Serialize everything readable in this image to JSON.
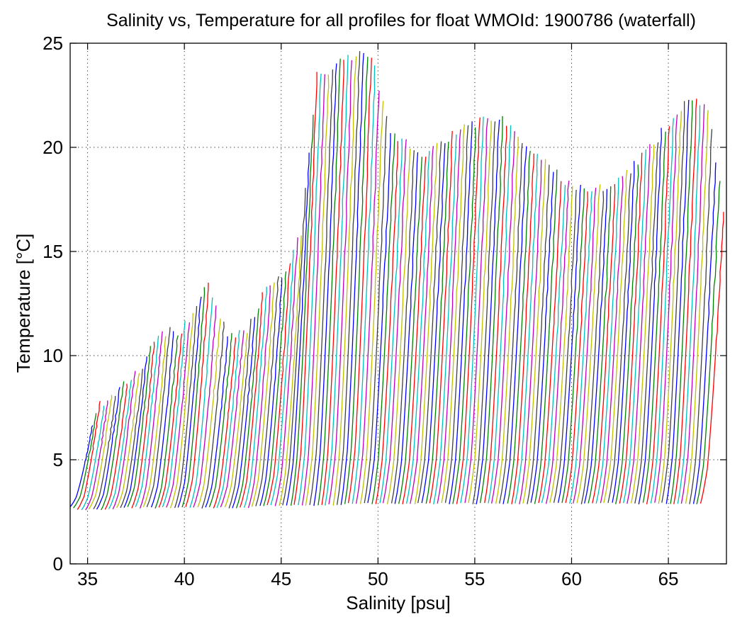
{
  "chart_data": {
    "type": "line",
    "title": "Salinity vs, Temperature for all profiles for float WMOId: 1900786 (waterfall)",
    "xlabel": "Salinity [psu]",
    "ylabel": "Temperature [°C]",
    "xlim": [
      34.1,
      68
    ],
    "ylim": [
      0,
      25
    ],
    "xticks": [
      35,
      40,
      45,
      50,
      55,
      60,
      65
    ],
    "yticks": [
      0,
      5,
      10,
      15,
      20,
      25
    ],
    "grid": true,
    "grid_style": "dotted",
    "legend": "none",
    "color_cycle": [
      "#0000ff",
      "#008000",
      "#ff0000",
      "#00bfbf",
      "#bf00bf",
      "#bfbf00",
      "#404040"
    ],
    "profile_spacing_psu": 0.2,
    "series_count": 164,
    "series": [
      {
        "name": "",
        "x_start": 34.2,
        "t_top": 6.9,
        "t_bottom": 2.7
      },
      {
        "name": "",
        "x_start": 34.6,
        "t_top": 7.6,
        "t_bottom": 2.6
      },
      {
        "name": "",
        "x_start": 35.2,
        "t_top": 7.9,
        "t_bottom": 2.6
      },
      {
        "name": "",
        "x_start": 36.0,
        "t_top": 8.8,
        "t_bottom": 2.6
      },
      {
        "name": "",
        "x_start": 36.6,
        "t_top": 9.2,
        "t_bottom": 2.7
      },
      {
        "name": "",
        "x_start": 37.6,
        "t_top": 11.1,
        "t_bottom": 2.7
      },
      {
        "name": "",
        "x_start": 38.8,
        "t_top": 11.2,
        "t_bottom": 2.7
      },
      {
        "name": "",
        "x_start": 40.2,
        "t_top": 13.4,
        "t_bottom": 2.7
      },
      {
        "name": "",
        "x_start": 41.2,
        "t_top": 11.0,
        "t_bottom": 2.7
      },
      {
        "name": "",
        "x_start": 42.2,
        "t_top": 11.3,
        "t_bottom": 2.7
      },
      {
        "name": "",
        "x_start": 43.2,
        "t_top": 13.3,
        "t_bottom": 2.7
      },
      {
        "name": "",
        "x_start": 44.2,
        "t_top": 14.0,
        "t_bottom": 2.8
      },
      {
        "name": "",
        "x_start": 45.0,
        "t_top": 16.0,
        "t_bottom": 2.8
      },
      {
        "name": "",
        "x_start": 45.8,
        "t_top": 23.4,
        "t_bottom": 2.8
      },
      {
        "name": "",
        "x_start": 47.2,
        "t_top": 24.2,
        "t_bottom": 2.8
      },
      {
        "name": "",
        "x_start": 48.6,
        "t_top": 24.5,
        "t_bottom": 2.9
      },
      {
        "name": "",
        "x_start": 49.6,
        "t_top": 20.6,
        "t_bottom": 2.9
      },
      {
        "name": "",
        "x_start": 51.4,
        "t_top": 19.6,
        "t_bottom": 2.9
      },
      {
        "name": "",
        "x_start": 53.4,
        "t_top": 21.0,
        "t_bottom": 2.9
      },
      {
        "name": "",
        "x_start": 55.2,
        "t_top": 21.5,
        "t_bottom": 2.9
      },
      {
        "name": "",
        "x_start": 57.0,
        "t_top": 19.8,
        "t_bottom": 2.9
      },
      {
        "name": "",
        "x_start": 59.0,
        "t_top": 18.0,
        "t_bottom": 2.9
      },
      {
        "name": "",
        "x_start": 61.0,
        "t_top": 18.0,
        "t_bottom": 2.9
      },
      {
        "name": "",
        "x_start": 63.2,
        "t_top": 20.2,
        "t_bottom": 2.9
      },
      {
        "name": "",
        "x_start": 65.0,
        "t_top": 22.4,
        "t_bottom": 2.9
      },
      {
        "name": "",
        "x_start": 66.0,
        "t_top": 22.0,
        "t_bottom": 2.9
      },
      {
        "name": "",
        "x_start": 66.8,
        "t_top": 17.0,
        "t_bottom": 2.9
      }
    ]
  }
}
